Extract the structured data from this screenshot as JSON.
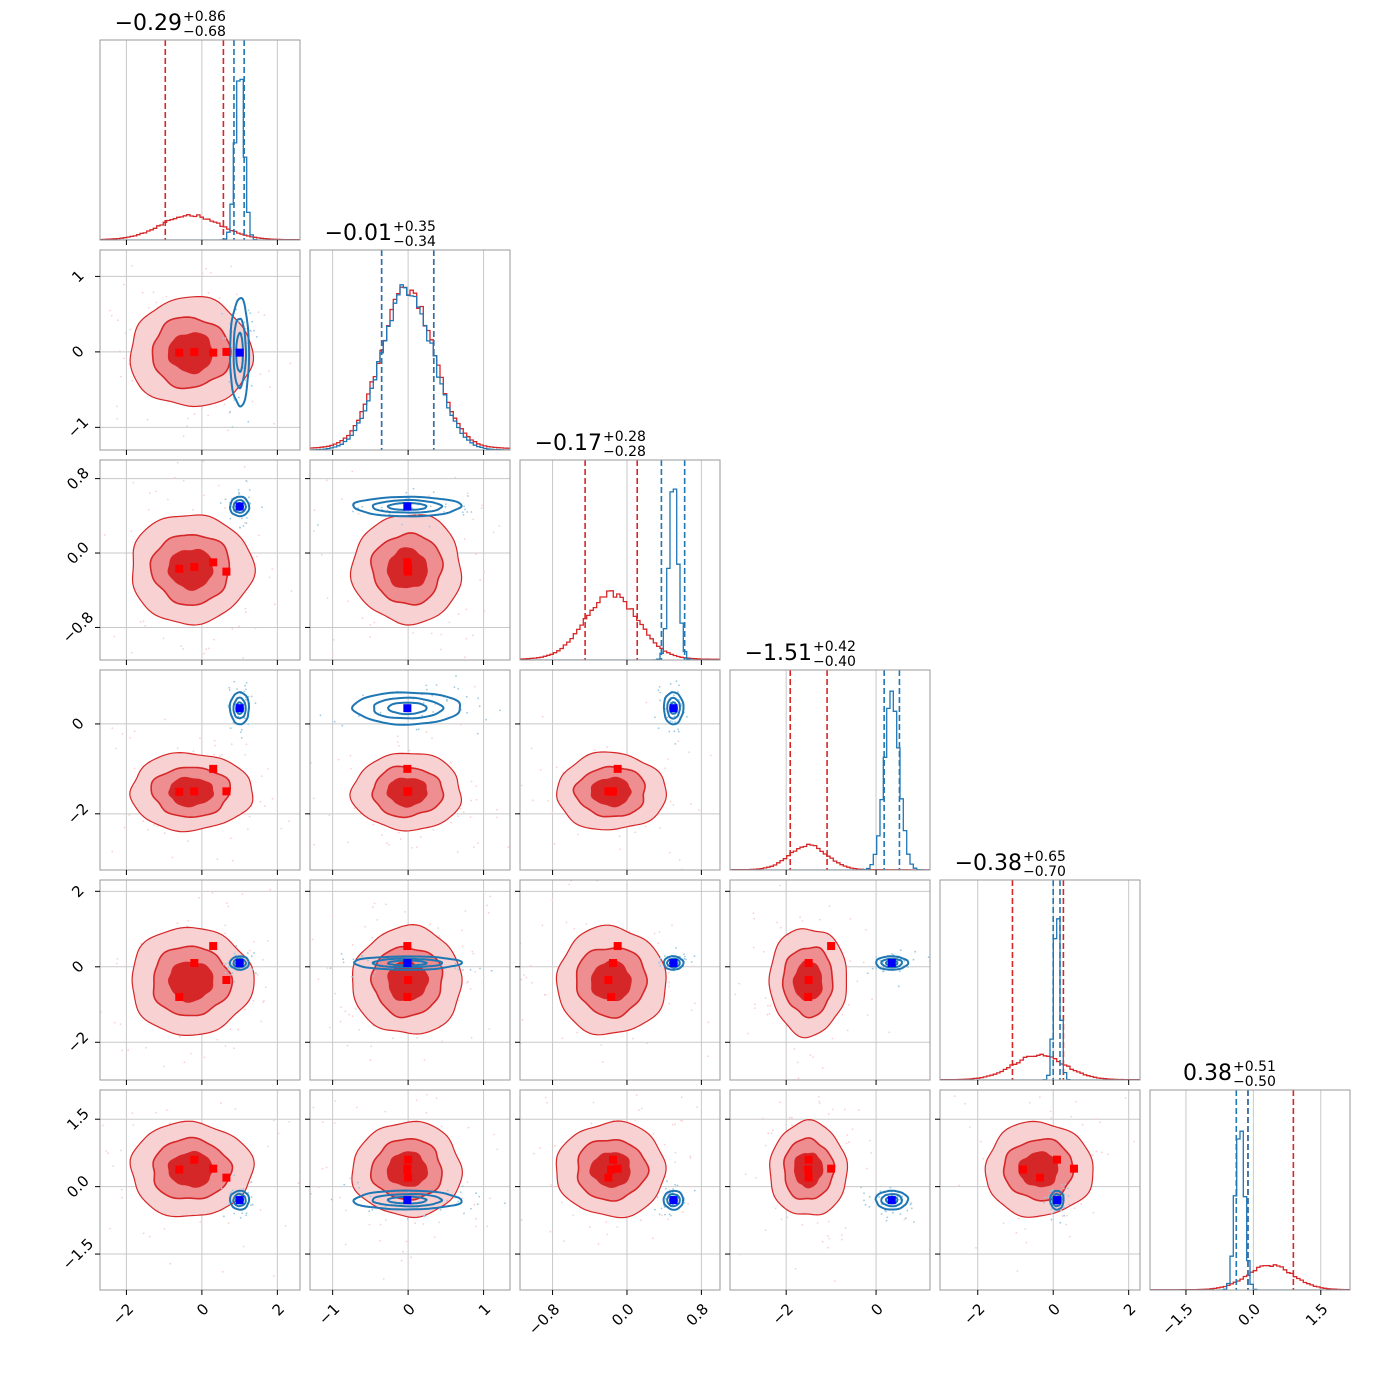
{
  "chart_data": {
    "type": "corner",
    "title": "",
    "colors": {
      "red": "#d62728",
      "red_mid": "#ee8e91",
      "red_light": "#f8d1d2",
      "blue": "#1f77b4",
      "blue_marker": "#0000ff",
      "red_marker": "#ff0000",
      "grid": "#c8c8c8",
      "frame": "#999999"
    },
    "grid": true,
    "parameters": [
      {
        "median": "−0.29",
        "plus": "+0.86",
        "minus": "−0.68",
        "range": [
          -2.7,
          2.6
        ],
        "ticks": [
          -2,
          0,
          2
        ],
        "tick_labels": [
          "−2",
          "0",
          "2"
        ]
      },
      {
        "median": "−0.01",
        "plus": "+0.35",
        "minus": "−0.34",
        "range": [
          -1.3,
          1.35
        ],
        "ticks": [
          -1,
          0,
          1
        ],
        "tick_labels": [
          "−1",
          "0",
          "1"
        ]
      },
      {
        "median": "−0.17",
        "plus": "+0.28",
        "minus": "−0.28",
        "range": [
          -1.15,
          1.0
        ],
        "ticks": [
          -0.8,
          0.0,
          0.8
        ],
        "tick_labels": [
          "−0.8",
          "0.0",
          "0.8"
        ]
      },
      {
        "median": "−1.51",
        "plus": "+0.42",
        "minus": "−0.40",
        "range": [
          -3.25,
          1.2
        ],
        "ticks": [
          -2,
          0
        ],
        "tick_labels": [
          "−2",
          "0"
        ]
      },
      {
        "median": "−0.38",
        "plus": "+0.65",
        "minus": "−0.70",
        "range": [
          -3.0,
          2.3
        ],
        "ticks": [
          -2,
          0,
          2
        ],
        "tick_labels": [
          "−2",
          "0",
          "2"
        ]
      },
      {
        "median": "0.38",
        "plus": "+0.51",
        "minus": "−0.50",
        "range": [
          -2.3,
          2.15
        ],
        "ticks": [
          -1.5,
          0.0,
          1.5
        ],
        "tick_labels": [
          "−1.5",
          "0.0",
          "1.5"
        ]
      }
    ],
    "series": [
      {
        "color": "#d62728",
        "mean": [
          -0.29,
          -0.01,
          -0.17,
          -1.51,
          -0.38,
          0.38
        ],
        "sd": [
          0.77,
          0.345,
          0.28,
          0.41,
          0.68,
          0.5
        ],
        "quantiles_16": [
          -0.97,
          -0.35,
          -0.45,
          -1.91,
          -1.08,
          -0.12
        ],
        "quantiles_84": [
          0.57,
          0.34,
          0.11,
          -1.09,
          0.27,
          0.89
        ]
      },
      {
        "color": "#1f77b4",
        "mean": [
          1.0,
          -0.01,
          0.5,
          0.35,
          0.1,
          -0.3
        ],
        "sd": [
          0.12,
          0.34,
          0.05,
          0.17,
          0.085,
          0.1
        ],
        "quantiles_16": [
          0.85,
          -0.35,
          0.37,
          0.18,
          0.0,
          -0.38
        ],
        "quantiles_84": [
          1.12,
          0.34,
          0.62,
          0.52,
          0.18,
          -0.12
        ]
      }
    ],
    "red_markers": [
      [
        -0.6,
        -0.01,
        -0.17,
        -1.51,
        -0.8,
        0.38
      ],
      [
        -0.2,
        0.0,
        -0.15,
        -1.5,
        0.1,
        0.6
      ],
      [
        0.3,
        -0.01,
        -0.1,
        -1.0,
        0.55,
        0.4
      ],
      [
        0.65,
        0.0,
        -0.2,
        -1.5,
        -0.35,
        0.2
      ]
    ],
    "blue_marker": [
      1.0,
      -0.01,
      0.5,
      0.35,
      0.1,
      -0.3
    ]
  }
}
